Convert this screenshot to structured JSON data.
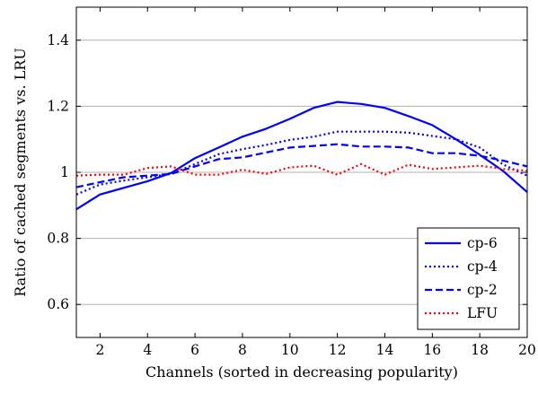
{
  "chart_data": {
    "type": "line",
    "title": "",
    "xlabel": "Channels (sorted in decreasing popularity)",
    "ylabel": "Ratio of cached segments vs. LRU",
    "xlim": [
      1,
      20
    ],
    "ylim": [
      0.5,
      1.5
    ],
    "xticks": [
      2,
      4,
      6,
      8,
      10,
      12,
      14,
      16,
      18,
      20
    ],
    "yticks": [
      0.6,
      0.8,
      1,
      1.2,
      1.4
    ],
    "xtick_labels": [
      "2",
      "4",
      "6",
      "8",
      "10",
      "12",
      "14",
      "16",
      "18",
      "20"
    ],
    "ytick_labels": [
      "0.6",
      "0.8",
      "1",
      "1.2",
      "1.4"
    ],
    "grid": "horizontal",
    "legend_position": "bottom-right",
    "x": [
      1,
      2,
      3,
      4,
      5,
      6,
      7,
      8,
      9,
      10,
      11,
      12,
      13,
      14,
      15,
      16,
      17,
      18,
      19,
      20
    ],
    "series": [
      {
        "name": "cp-6",
        "color": "#0000ff",
        "style": "solid",
        "values": [
          0.888,
          0.933,
          0.953,
          0.973,
          0.998,
          1.043,
          1.075,
          1.108,
          1.132,
          1.162,
          1.195,
          1.213,
          1.207,
          1.195,
          1.17,
          1.143,
          1.1,
          1.053,
          1.003,
          0.94
        ]
      },
      {
        "name": "cp-4",
        "color": "#0000ff",
        "style": "dotted",
        "values": [
          0.933,
          0.963,
          0.975,
          0.985,
          0.995,
          1.025,
          1.055,
          1.07,
          1.083,
          1.098,
          1.108,
          1.123,
          1.123,
          1.123,
          1.12,
          1.11,
          1.1,
          1.075,
          1.023,
          0.99
        ]
      },
      {
        "name": "cp-2",
        "color": "#0000ff",
        "style": "dashed",
        "values": [
          0.955,
          0.97,
          0.985,
          0.99,
          0.995,
          1.018,
          1.04,
          1.045,
          1.06,
          1.075,
          1.08,
          1.085,
          1.078,
          1.078,
          1.075,
          1.058,
          1.058,
          1.05,
          1.035,
          1.018
        ]
      },
      {
        "name": "LFU",
        "color": "#ff0000",
        "style": "dotted",
        "values": [
          0.99,
          0.993,
          0.993,
          1.013,
          1.018,
          0.993,
          0.993,
          1.008,
          0.995,
          1.015,
          1.02,
          0.993,
          1.025,
          0.993,
          1.023,
          1.01,
          1.015,
          1.02,
          1.01,
          1.005
        ]
      }
    ]
  }
}
